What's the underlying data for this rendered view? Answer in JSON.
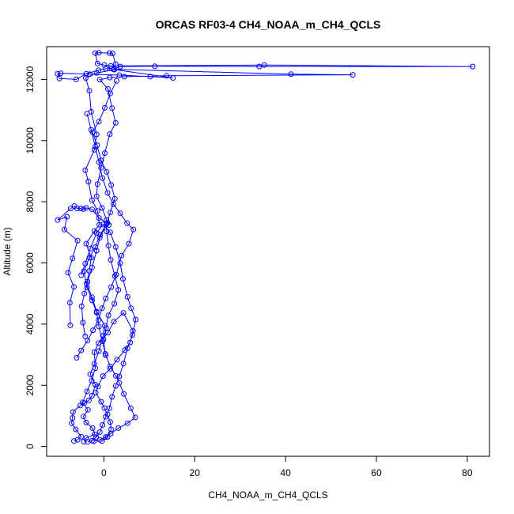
{
  "chart_data": {
    "type": "line",
    "title": "ORCAS RF03-4 CH4_NOAA_m_CH4_QCLS",
    "xlabel": "CH4_NOAA_m_CH4_QCLS",
    "ylabel": "Altitude (m)",
    "xlim": [
      -12.6,
      84.9
    ],
    "ylim": [
      -320,
      13070
    ],
    "xticks": [
      0,
      20,
      40,
      60,
      80
    ],
    "yticks": [
      0,
      2000,
      4000,
      6000,
      8000,
      10000,
      12000
    ],
    "colors": {
      "series": "#0000ff"
    },
    "markers": "open-circle",
    "series": [
      {
        "values": [
          [
            -6.6,
            180
          ],
          [
            -5.8,
            220
          ],
          [
            -5.0,
            320
          ],
          [
            -6.2,
            560
          ],
          [
            -7.1,
            760
          ],
          [
            -6.9,
            930
          ],
          [
            -6.8,
            1130
          ],
          [
            -5.2,
            1340
          ],
          [
            -4.3,
            1420
          ],
          [
            -3.3,
            1510
          ],
          [
            -2.6,
            1660
          ],
          [
            -1.9,
            2020
          ],
          [
            -3.0,
            2360
          ],
          [
            -2.1,
            2700
          ],
          [
            -1.1,
            3120
          ],
          [
            -0.2,
            3620
          ],
          [
            0.2,
            3950
          ],
          [
            -1.6,
            4410
          ],
          [
            -2.6,
            4880
          ],
          [
            -3.8,
            5320
          ],
          [
            -3.2,
            5740
          ],
          [
            -2.8,
            6170
          ],
          [
            -3.9,
            6630
          ],
          [
            -2.1,
            7040
          ],
          [
            -1.0,
            7250
          ],
          [
            -1.4,
            7700
          ],
          [
            -2.6,
            8050
          ],
          [
            -3.4,
            8660
          ],
          [
            -4.1,
            9030
          ],
          [
            -2.1,
            9700
          ],
          [
            -1.6,
            10200
          ],
          [
            -2.8,
            10940
          ],
          [
            -3.2,
            11630
          ],
          [
            -4.0,
            12050
          ],
          [
            -1.6,
            12210
          ],
          [
            2.3,
            12320
          ],
          [
            15.2,
            12050
          ],
          [
            10.2,
            12090
          ],
          [
            3.4,
            12140
          ],
          [
            -3.1,
            12170
          ],
          [
            -9.5,
            12200
          ],
          [
            -10.2,
            12180
          ],
          [
            -9.8,
            12030
          ],
          [
            -6.1,
            12000
          ],
          [
            -3.9,
            12180
          ],
          [
            -1.2,
            12300
          ],
          [
            0.4,
            12350
          ],
          [
            1.7,
            12360
          ],
          [
            2.6,
            12500
          ],
          [
            1.9,
            12850
          ],
          [
            1.2,
            12860
          ],
          [
            -1.1,
            12870
          ],
          [
            -1.9,
            12860
          ],
          [
            -1.4,
            12520
          ],
          [
            0.1,
            12470
          ],
          [
            1.5,
            12440
          ],
          [
            35.3,
            12470
          ],
          [
            81.2,
            12420
          ],
          [
            34.2,
            12420
          ],
          [
            11.2,
            12430
          ],
          [
            3.6,
            12420
          ],
          [
            2.1,
            12330
          ],
          [
            41.2,
            12170
          ],
          [
            54.8,
            12150
          ],
          [
            13.8,
            12120
          ],
          [
            4.5,
            12090
          ],
          [
            1.3,
            12060
          ],
          [
            -0.9,
            11990
          ],
          [
            0.9,
            11690
          ],
          [
            1.8,
            11060
          ],
          [
            2.6,
            10580
          ],
          [
            1.3,
            10210
          ],
          [
            0.2,
            9590
          ],
          [
            -0.6,
            9110
          ],
          [
            -1.4,
            8580
          ],
          [
            -1.6,
            8180
          ],
          [
            -0.4,
            7800
          ],
          [
            0.6,
            7400
          ],
          [
            0.6,
            7030
          ],
          [
            1.0,
            6560
          ],
          [
            1.5,
            6100
          ],
          [
            2.4,
            5570
          ],
          [
            3.2,
            5120
          ],
          [
            2.3,
            4670
          ],
          [
            1.0,
            4290
          ],
          [
            0.5,
            3870
          ],
          [
            -0.1,
            3490
          ],
          [
            0.3,
            3030
          ],
          [
            1.4,
            2620
          ],
          [
            2.6,
            2310
          ],
          [
            3.4,
            2080
          ],
          [
            4.4,
            1720
          ],
          [
            5.9,
            1250
          ],
          [
            6.9,
            950
          ],
          [
            5.2,
            760
          ],
          [
            3.2,
            600
          ],
          [
            1.5,
            420
          ],
          [
            0.4,
            310
          ],
          [
            -0.9,
            220
          ],
          [
            -2.2,
            170
          ]
        ]
      },
      {
        "values": [
          [
            -4.4,
            160
          ],
          [
            -3.9,
            280
          ],
          [
            -2.0,
            400
          ],
          [
            -2.5,
            600
          ],
          [
            -3.9,
            780
          ],
          [
            -4.5,
            980
          ],
          [
            -3.5,
            1200
          ],
          [
            -4.7,
            1440
          ],
          [
            -3.7,
            1800
          ],
          [
            -2.7,
            2150
          ],
          [
            -1.9,
            2560
          ],
          [
            -2.1,
            3080
          ],
          [
            -1.2,
            3380
          ],
          [
            0.9,
            3720
          ],
          [
            2.2,
            4080
          ],
          [
            4.3,
            4370
          ],
          [
            6.4,
            3780
          ],
          [
            5.8,
            3400
          ],
          [
            4.6,
            3150
          ],
          [
            2.9,
            2840
          ],
          [
            1.4,
            2540
          ],
          [
            -0.2,
            2300
          ],
          [
            -1.3,
            1960
          ],
          [
            -1.8,
            1760
          ],
          [
            -0.6,
            1460
          ],
          [
            0.1,
            1260
          ],
          [
            0.8,
            1050
          ],
          [
            1.4,
            800
          ],
          [
            1.6,
            560
          ],
          [
            0.8,
            310
          ],
          [
            -0.4,
            180
          ]
        ]
      },
      {
        "values": [
          [
            -7.4,
            3960
          ],
          [
            -7.5,
            4700
          ],
          [
            -6.6,
            5220
          ],
          [
            -7.9,
            5680
          ],
          [
            -6.9,
            6150
          ],
          [
            -5.8,
            6730
          ],
          [
            -8.7,
            7090
          ],
          [
            -8.1,
            7510
          ],
          [
            -10.2,
            7400
          ],
          [
            -7.3,
            7780
          ],
          [
            -6.5,
            7860
          ],
          [
            -5.9,
            7780
          ],
          [
            -5.1,
            7780
          ],
          [
            -4.5,
            7760
          ],
          [
            -3.9,
            7800
          ],
          [
            -2.6,
            7750
          ],
          [
            -1.1,
            7470
          ],
          [
            0.8,
            7300
          ],
          [
            1.1,
            7240
          ],
          [
            0.6,
            7290
          ],
          [
            -0.8,
            6920
          ],
          [
            -1.9,
            6520
          ],
          [
            -3.2,
            6170
          ],
          [
            -4.4,
            5730
          ],
          [
            -3.7,
            5200
          ],
          [
            -2.6,
            4780
          ],
          [
            -1.6,
            4380
          ],
          [
            -1.1,
            3920
          ],
          [
            -0.3,
            3440
          ],
          [
            0.4,
            2980
          ]
        ]
      },
      {
        "values": [
          [
            -6.0,
            2900
          ],
          [
            -5.0,
            3140
          ],
          [
            -3.6,
            3460
          ],
          [
            -2.4,
            3800
          ],
          [
            -1.2,
            4130
          ],
          [
            -0.4,
            4520
          ],
          [
            0.4,
            4840
          ],
          [
            1.6,
            5210
          ],
          [
            2.7,
            5620
          ],
          [
            3.9,
            6240
          ],
          [
            5.5,
            6630
          ],
          [
            6.5,
            7090
          ],
          [
            5.1,
            7300
          ],
          [
            3.6,
            7620
          ],
          [
            2.1,
            7920
          ],
          [
            0.8,
            8290
          ],
          [
            -0.3,
            8770
          ],
          [
            -1.1,
            9290
          ],
          [
            -1.9,
            9800
          ],
          [
            -2.8,
            10350
          ],
          [
            -3.7,
            10880
          ]
        ]
      },
      {
        "values": [
          [
            -4.1,
            3600
          ],
          [
            -4.6,
            4050
          ],
          [
            -4.9,
            4580
          ],
          [
            -4.3,
            5000
          ],
          [
            -3.6,
            5390
          ],
          [
            -2.6,
            5850
          ],
          [
            -1.6,
            6400
          ],
          [
            -0.9,
            6820
          ],
          [
            0.6,
            7270
          ],
          [
            1.4,
            7650
          ],
          [
            2.4,
            8100
          ],
          [
            1.6,
            8550
          ],
          [
            0.6,
            8980
          ],
          [
            -0.6,
            9350
          ],
          [
            -1.5,
            9850
          ],
          [
            -2.5,
            10270
          ],
          [
            -1.1,
            10620
          ],
          [
            0.2,
            11070
          ],
          [
            1.4,
            11540
          ],
          [
            2.8,
            11950
          ]
        ]
      },
      {
        "values": [
          [
            -5.0,
            5600
          ],
          [
            -4.1,
            5980
          ],
          [
            -3.0,
            6470
          ],
          [
            -1.6,
            6980
          ],
          [
            -0.2,
            7260
          ],
          [
            1.4,
            7000
          ],
          [
            2.6,
            6520
          ],
          [
            3.6,
            5990
          ],
          [
            4.2,
            5480
          ],
          [
            5.2,
            4890
          ],
          [
            6.0,
            4520
          ],
          [
            7.0,
            4150
          ],
          [
            6.3,
            3640
          ],
          [
            5.2,
            3210
          ],
          [
            4.3,
            2710
          ],
          [
            3.4,
            2290
          ],
          [
            2.6,
            1980
          ],
          [
            1.8,
            1620
          ],
          [
            1.2,
            1250
          ],
          [
            0.4,
            970
          ],
          [
            -0.3,
            700
          ],
          [
            -0.9,
            470
          ],
          [
            -1.7,
            300
          ],
          [
            -2.6,
            190
          ],
          [
            -3.6,
            150
          ]
        ]
      }
    ]
  }
}
